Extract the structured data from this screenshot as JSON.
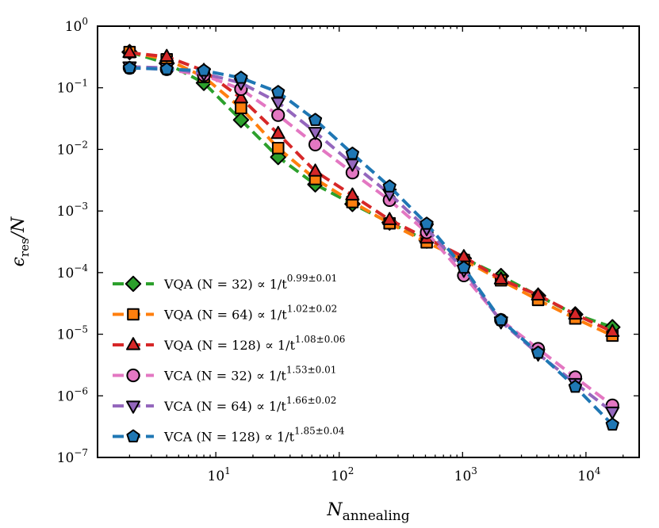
{
  "chart_data": {
    "type": "line",
    "xscale": "log",
    "yscale": "log",
    "xlim": [
      1.1,
      27000
    ],
    "ylim": [
      1e-07,
      1
    ],
    "xlabel_main": "N",
    "xlabel_sub": "annealing",
    "ylabel_main": "ϵ",
    "ylabel_sub": "res",
    "ylabel_suffix": "/N",
    "x_ticks": [
      {
        "value": 10,
        "base": "10",
        "exp": "1"
      },
      {
        "value": 100,
        "base": "10",
        "exp": "2"
      },
      {
        "value": 1000,
        "base": "10",
        "exp": "3"
      },
      {
        "value": 10000,
        "base": "10",
        "exp": "4"
      }
    ],
    "y_ticks": [
      {
        "value": 1,
        "base": "10",
        "exp": "0"
      },
      {
        "value": 0.1,
        "base": "10",
        "exp": "−1"
      },
      {
        "value": 0.01,
        "base": "10",
        "exp": "−2"
      },
      {
        "value": 0.001,
        "base": "10",
        "exp": "−3"
      },
      {
        "value": 0.0001,
        "base": "10",
        "exp": "−4"
      },
      {
        "value": 1e-05,
        "base": "10",
        "exp": "−5"
      },
      {
        "value": 1e-06,
        "base": "10",
        "exp": "−6"
      },
      {
        "value": 1e-07,
        "base": "10",
        "exp": "−7"
      }
    ],
    "x": [
      2,
      4,
      8,
      16,
      32,
      64,
      128,
      256,
      512,
      1024,
      2048,
      4096,
      8192,
      16384
    ],
    "series": [
      {
        "name": "VQA (N = 32)",
        "label_main": "VQA (N = 32) ∝  1/t",
        "label_exp": "0.99±0.01",
        "color": "#2ca02c",
        "marker": "diamond",
        "values": [
          0.38,
          0.25,
          0.12,
          0.03,
          0.0075,
          0.0027,
          0.0013,
          0.00065,
          0.00033,
          0.00017,
          8.8e-05,
          4.2e-05,
          2.1e-05,
          1.3e-05
        ]
      },
      {
        "name": "VQA (N = 64)",
        "label_main": "VQA (N = 64) ∝  1/t",
        "label_exp": "1.02±0.02",
        "color": "#ff7f0e",
        "marker": "square",
        "values": [
          0.38,
          0.29,
          0.15,
          0.047,
          0.0105,
          0.0033,
          0.0014,
          0.00063,
          0.00031,
          0.00016,
          7.5e-05,
          3.6e-05,
          1.8e-05,
          9.5e-06
        ]
      },
      {
        "name": "VQA (N = 128)",
        "label_main": "VQA (N = 128) ∝  1/t",
        "label_exp": "1.08±0.06",
        "color": "#d62728",
        "marker": "triangle-up",
        "values": [
          0.37,
          0.32,
          0.19,
          0.068,
          0.018,
          0.0044,
          0.0018,
          0.00072,
          0.00036,
          0.00018,
          7.8e-05,
          4.3e-05,
          2.1e-05,
          1.1e-05
        ]
      },
      {
        "name": "VCA (N = 32)",
        "label_main": "VCA (N = 32) ∝  1/t",
        "label_exp": "1.53±0.01",
        "color": "#e377c2",
        "marker": "circle",
        "values": [
          0.21,
          0.2,
          0.16,
          0.095,
          0.036,
          0.012,
          0.0042,
          0.0015,
          0.00045,
          9e-05,
          1.7e-05,
          5.8e-06,
          2e-06,
          7e-07
        ]
      },
      {
        "name": "VCA (N = 64)",
        "label_main": "VCA (N = 64) ∝  1/t",
        "label_exp": "1.66±0.02",
        "color": "#9467bd",
        "marker": "triangle-down",
        "values": [
          0.22,
          0.21,
          0.17,
          0.12,
          0.058,
          0.019,
          0.0058,
          0.0019,
          0.00052,
          0.00011,
          1.6e-05,
          4.8e-06,
          1.6e-06,
          5.5e-07
        ]
      },
      {
        "name": "VCA (N = 128)",
        "label_main": "VCA (N = 128) ∝  1/t",
        "label_exp": "1.85±0.04",
        "color": "#1f77b4",
        "marker": "pentagon",
        "values": [
          0.21,
          0.2,
          0.19,
          0.145,
          0.085,
          0.03,
          0.0085,
          0.0025,
          0.00062,
          0.00012,
          1.7e-05,
          5e-06,
          1.4e-06,
          3.4e-07
        ]
      }
    ],
    "legend_position": "lower-left"
  }
}
